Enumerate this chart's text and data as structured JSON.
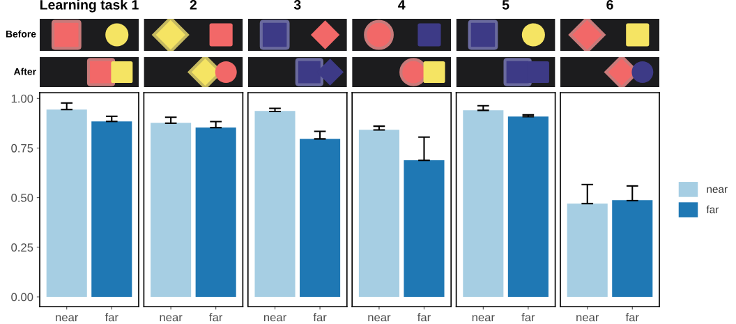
{
  "chart_data": [
    {
      "type": "bar",
      "title": "Learning task 1",
      "categories": [
        "near",
        "far"
      ],
      "ylim": [
        -0.049,
        1.029
      ],
      "yticks": [
        {
          "value": 0,
          "label": "0.00"
        },
        {
          "value": 0.25,
          "label": "0.25"
        },
        {
          "value": 0.5,
          "label": "0.50"
        },
        {
          "value": 0.75,
          "label": "0.75"
        },
        {
          "value": 1,
          "label": "1.00"
        }
      ],
      "grid": false,
      "annotations": [
        "Before",
        "After"
      ],
      "values": [
        0.944,
        0.884
      ],
      "colors": [
        "#a6cee3",
        "#1f78b4"
      ],
      "errors": [
        [
          0.944,
          0.977
        ],
        [
          0.884,
          0.91
        ]
      ]
    },
    {
      "type": "bar",
      "title": "2",
      "categories": [
        "near",
        "far"
      ],
      "ylim": [
        -0.049,
        1.029
      ],
      "tick_labels": "x",
      "grid": false,
      "values": [
        0.877,
        0.853
      ],
      "colors": [
        "#a6cee3",
        "#1f78b4"
      ],
      "errors": [
        [
          0.875,
          0.905
        ],
        [
          0.853,
          0.883
        ]
      ]
    },
    {
      "type": "bar",
      "title": "3",
      "categories": [
        "near",
        "far"
      ],
      "ylim": [
        -0.049,
        1.029
      ],
      "tick_labels": "x",
      "grid": false,
      "values": [
        0.937,
        0.796
      ],
      "colors": [
        "#a6cee3",
        "#1f78b4"
      ],
      "errors": [
        [
          0.934,
          0.95
        ],
        [
          0.796,
          0.834
        ]
      ]
    },
    {
      "type": "bar",
      "title": "4",
      "categories": [
        "near",
        "far"
      ],
      "ylim": [
        -0.049,
        1.029
      ],
      "tick_labels": "x",
      "grid": false,
      "values": [
        0.842,
        0.688
      ],
      "colors": [
        "#a6cee3",
        "#1f78b4"
      ],
      "errors": [
        [
          0.841,
          0.86
        ],
        [
          0.688,
          0.805
        ]
      ]
    },
    {
      "type": "bar",
      "title": "5",
      "categories": [
        "near",
        "far"
      ],
      "ylim": [
        -0.049,
        1.029
      ],
      "tick_labels": "x",
      "grid": false,
      "values": [
        0.94,
        0.909
      ],
      "colors": [
        "#a6cee3",
        "#1f78b4"
      ],
      "errors": [
        [
          0.94,
          0.963
        ],
        [
          0.908,
          0.917
        ]
      ]
    },
    {
      "type": "bar",
      "title": "6",
      "categories": [
        "near",
        "far"
      ],
      "ylim": [
        -0.049,
        1.029
      ],
      "tick_labels": "x",
      "grid": false,
      "legend": "right",
      "series": [
        {
          "name": "near",
          "color": "#a6cee3",
          "values": [
            0.47,
            null
          ],
          "errors": [
            [
              0.47,
              0.566
            ],
            null
          ]
        },
        {
          "name": "far",
          "color": "#1f78b4",
          "values": [
            null,
            0.487
          ],
          "errors": [
            null,
            [
              0.485,
              0.559
            ]
          ]
        }
      ]
    }
  ]
}
